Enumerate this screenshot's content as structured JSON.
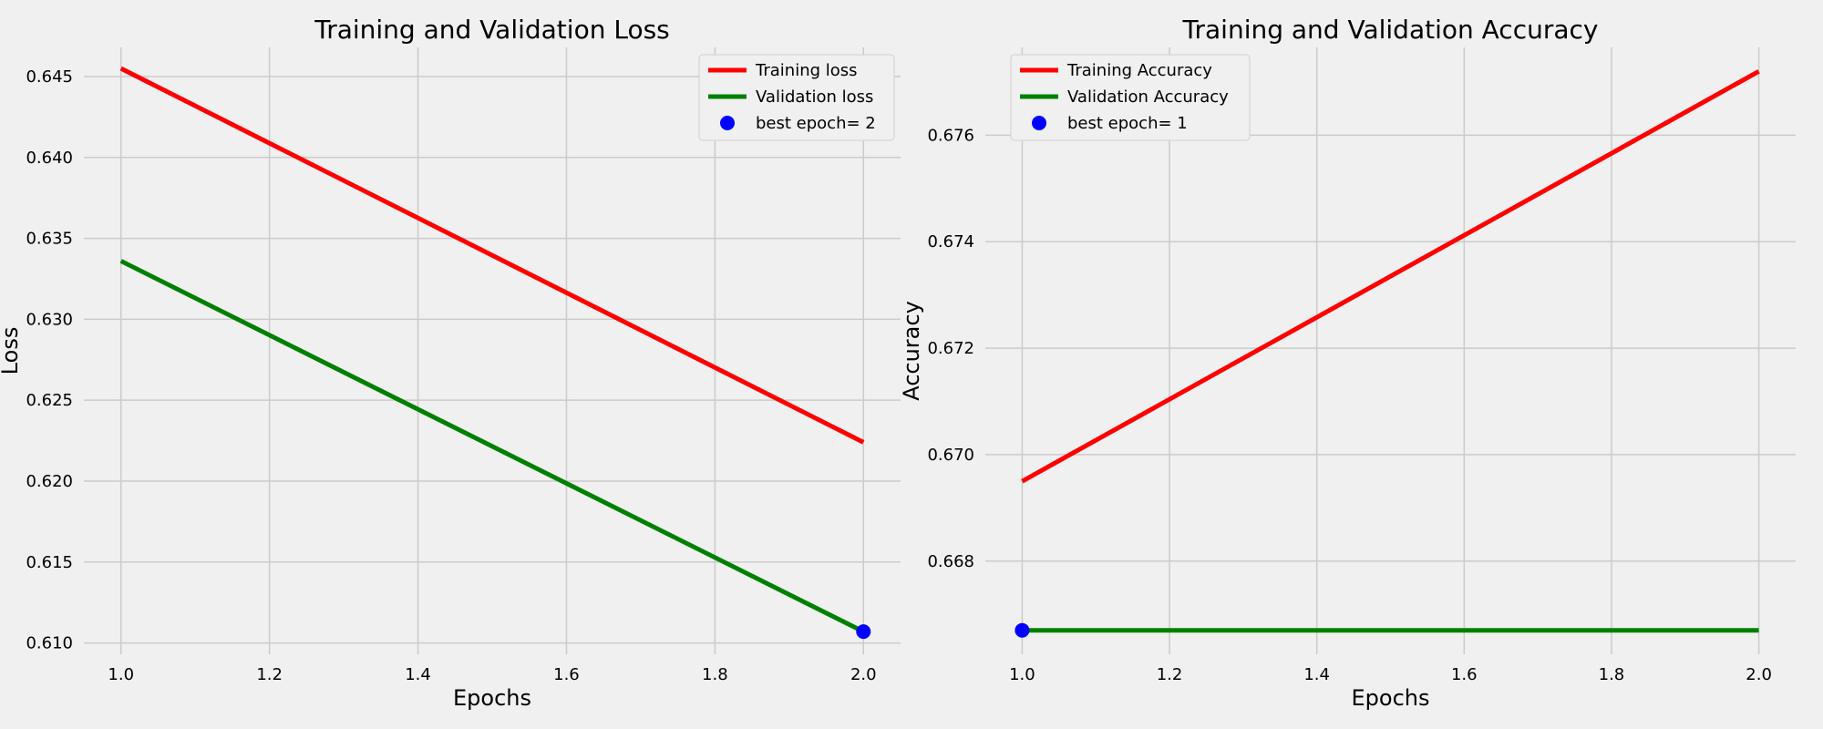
{
  "chart_data": [
    {
      "type": "line",
      "title": "Training and Validation Loss",
      "xlabel": "Epochs",
      "ylabel": "Loss",
      "xlim": [
        0.95,
        2.05
      ],
      "ylim": [
        0.6093,
        0.6468
      ],
      "xticks": [
        1.0,
        1.2,
        1.4,
        1.6,
        1.8,
        2.0
      ],
      "xtick_labels": [
        "1.0",
        "1.2",
        "1.4",
        "1.6",
        "1.8",
        "2.0"
      ],
      "yticks": [
        0.61,
        0.615,
        0.62,
        0.625,
        0.63,
        0.635,
        0.64,
        0.645
      ],
      "ytick_labels": [
        "0.610",
        "0.615",
        "0.620",
        "0.625",
        "0.630",
        "0.635",
        "0.640",
        "0.645"
      ],
      "grid": true,
      "legend_position": "top-right",
      "series": [
        {
          "name": "Training loss",
          "color": "#ff0000",
          "x": [
            1,
            2
          ],
          "y": [
            0.6455,
            0.6224
          ]
        },
        {
          "name": "Validation loss",
          "color": "#008000",
          "x": [
            1,
            2
          ],
          "y": [
            0.6336,
            0.6107
          ]
        }
      ],
      "best_point": {
        "label": "best epoch= 2",
        "color": "#0000ff",
        "x": 2,
        "y": 0.6107
      }
    },
    {
      "type": "line",
      "title": "Training and Validation Accuracy",
      "xlabel": "Epochs",
      "ylabel": "Accuracy",
      "xlim": [
        0.95,
        2.05
      ],
      "ylim": [
        0.66625,
        0.67765
      ],
      "xticks": [
        1.0,
        1.2,
        1.4,
        1.6,
        1.8,
        2.0
      ],
      "xtick_labels": [
        "1.0",
        "1.2",
        "1.4",
        "1.6",
        "1.8",
        "2.0"
      ],
      "yticks": [
        0.668,
        0.67,
        0.672,
        0.674,
        0.676
      ],
      "ytick_labels": [
        "0.668",
        "0.670",
        "0.672",
        "0.674",
        "0.676"
      ],
      "grid": true,
      "legend_position": "top-left",
      "series": [
        {
          "name": "Training Accuracy",
          "color": "#ff0000",
          "x": [
            1,
            2
          ],
          "y": [
            0.6695,
            0.6772
          ]
        },
        {
          "name": "Validation Accuracy",
          "color": "#008000",
          "x": [
            1,
            2
          ],
          "y": [
            0.6667,
            0.6667
          ]
        }
      ],
      "best_point": {
        "label": "best epoch= 1",
        "color": "#0000ff",
        "x": 1,
        "y": 0.6667
      }
    }
  ]
}
